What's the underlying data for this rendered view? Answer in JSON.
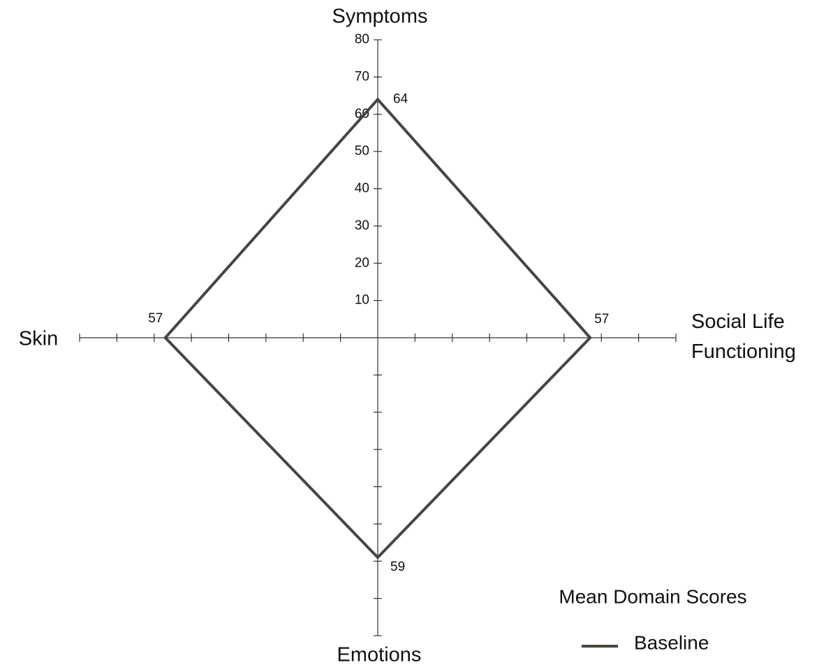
{
  "chart_data": {
    "type": "radar",
    "categories": [
      "Symptoms",
      "Social Life Functioning",
      "Emotions",
      "Skin"
    ],
    "series": [
      {
        "name": "Baseline",
        "color": "#4a4440",
        "values": [
          64,
          57,
          59,
          57
        ]
      }
    ],
    "rlim": [
      0,
      80
    ],
    "rticks": [
      10,
      20,
      30,
      40,
      50,
      60,
      70,
      80
    ],
    "legend_title": "Mean Domain Scores",
    "legend": "lower right"
  }
}
